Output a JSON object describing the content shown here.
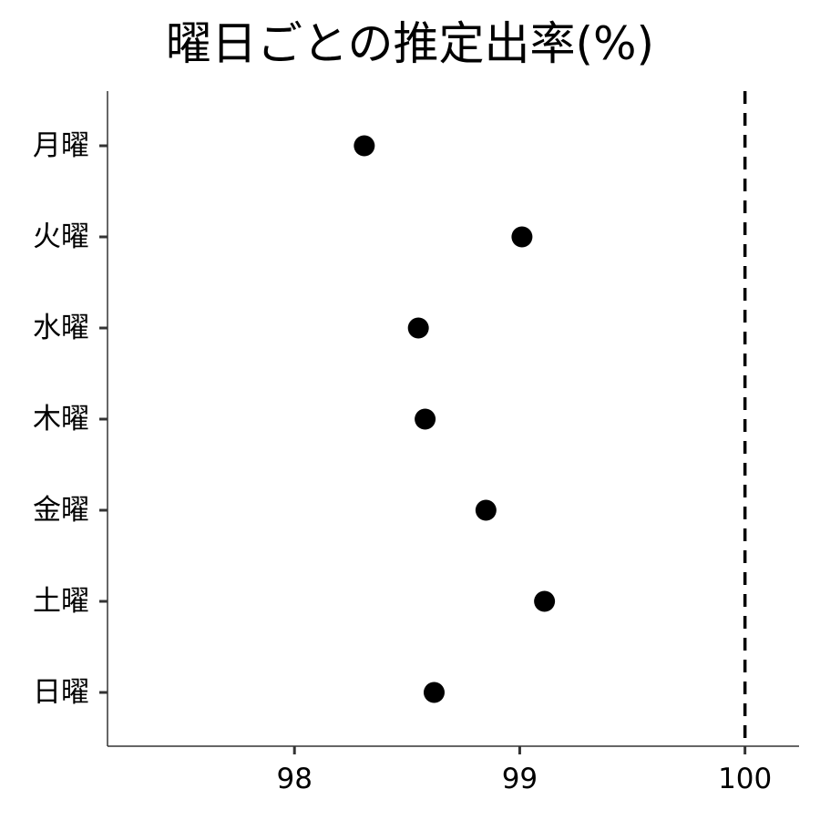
{
  "chart_data": {
    "type": "scatter",
    "title": "曜日ごとの推定出率(%)",
    "xlabel": "",
    "ylabel": "",
    "categories": [
      "月曜",
      "火曜",
      "水曜",
      "木曜",
      "金曜",
      "土曜",
      "日曜"
    ],
    "values": [
      98.31,
      99.01,
      98.55,
      98.58,
      98.85,
      99.11,
      98.62
    ],
    "x_ticks": [
      98,
      99,
      100
    ],
    "xlim": [
      97.17,
      100.24
    ],
    "reference_line": {
      "x": 100,
      "style": "dashed"
    },
    "grid": false,
    "legend": "none",
    "colors": {
      "point": "#000000",
      "axis": "#333333",
      "text": "#000000"
    }
  }
}
